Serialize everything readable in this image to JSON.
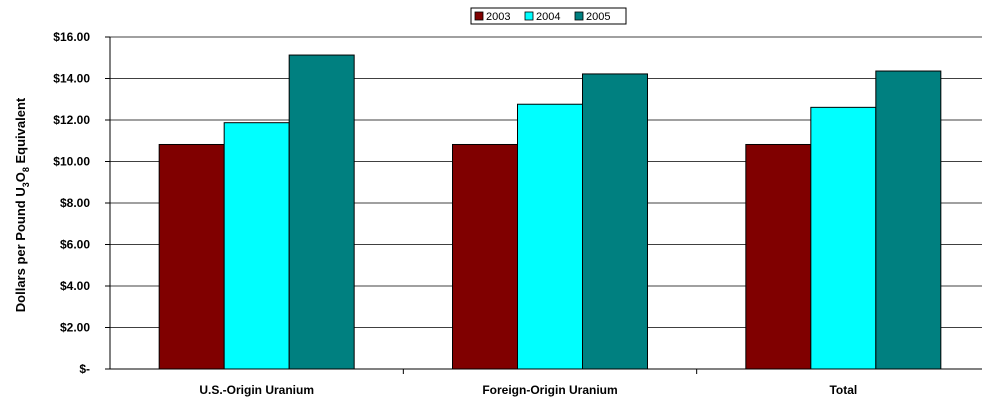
{
  "chart_data": {
    "type": "bar",
    "categories": [
      "U.S.-Origin Uranium",
      "Foreign-Origin Uranium",
      "Total"
    ],
    "series": [
      {
        "name": "2003",
        "color": "#800000",
        "values": [
          10.82,
          10.82,
          10.82
        ]
      },
      {
        "name": "2004",
        "color": "#00FFFF",
        "values": [
          11.87,
          12.76,
          12.61
        ]
      },
      {
        "name": "2005",
        "color": "#008080",
        "values": [
          15.13,
          14.22,
          14.36
        ]
      }
    ],
    "ylabel": {
      "prefix": "Dollars per Pound U",
      "sub1": "3",
      "mid": "O",
      "sub2": "8",
      "suffix": " Equivalent"
    },
    "ylim": [
      0,
      16
    ],
    "yticks": [
      0,
      2,
      4,
      6,
      8,
      10,
      12,
      14,
      16
    ],
    "ytick_labels": [
      "$-",
      "$2.00",
      "$4.00",
      "$6.00",
      "$8.00",
      "$10.00",
      "$12.00",
      "$14.00",
      "$16.00"
    ],
    "grid": true,
    "legend_position": "top-center"
  }
}
